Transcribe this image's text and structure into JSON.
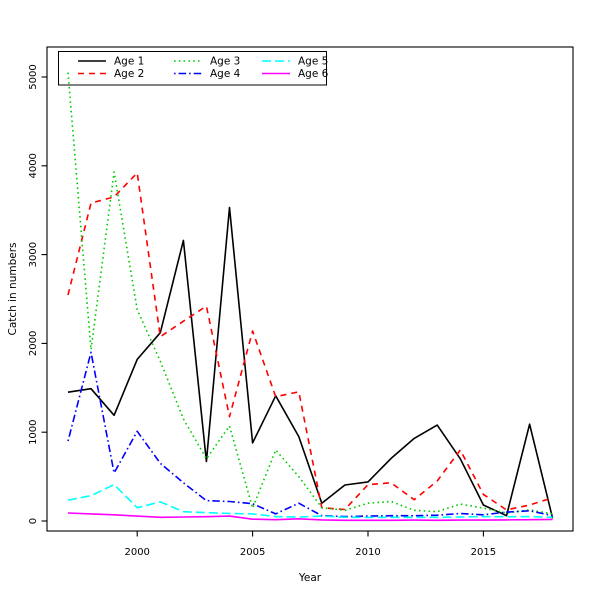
{
  "figure": {
    "background": "#ffffff",
    "axis_color": "#000000"
  },
  "chart_data": {
    "type": "line",
    "title": "",
    "xlabel": "Year",
    "ylabel": "Catch in numbers",
    "x": [
      1997,
      1998,
      1999,
      2000,
      2001,
      2002,
      2003,
      2004,
      2005,
      2006,
      2007,
      2008,
      2009,
      2010,
      2011,
      2012,
      2013,
      2014,
      2015,
      2016,
      2017,
      2018
    ],
    "series": [
      {
        "name": "Age 1",
        "color": "#000000",
        "linestyle": "solid",
        "values": [
          1450,
          1490,
          1190,
          1820,
          2120,
          3160,
          670,
          3530,
          880,
          1410,
          950,
          200,
          405,
          440,
          705,
          930,
          1080,
          700,
          180,
          60,
          1090,
          30
        ]
      },
      {
        "name": "Age 2",
        "color": "#ff0000",
        "linestyle": "dashed",
        "values": [
          2545,
          3580,
          3650,
          3920,
          2075,
          2250,
          2420,
          1175,
          2140,
          1400,
          1455,
          150,
          130,
          410,
          430,
          240,
          450,
          800,
          300,
          125,
          180,
          260
        ]
      },
      {
        "name": "Age 3",
        "color": "#00cd00",
        "linestyle": "dotted",
        "values": [
          5050,
          1930,
          3930,
          2380,
          1800,
          1150,
          700,
          1070,
          145,
          800,
          500,
          150,
          120,
          200,
          220,
          120,
          105,
          190,
          145,
          90,
          125,
          80
        ]
      },
      {
        "name": "Age 4",
        "color": "#0000ff",
        "linestyle": "dotdash",
        "values": [
          900,
          1900,
          540,
          1010,
          650,
          430,
          230,
          220,
          195,
          80,
          200,
          60,
          50,
          55,
          60,
          60,
          65,
          85,
          70,
          100,
          115,
          60
        ]
      },
      {
        "name": "Age 5",
        "color": "#00ffff",
        "linestyle": "longdash",
        "values": [
          235,
          285,
          410,
          150,
          215,
          105,
          95,
          85,
          80,
          50,
          45,
          55,
          42,
          40,
          42,
          40,
          42,
          45,
          50,
          48,
          50,
          42
        ]
      },
      {
        "name": "Age 6",
        "color": "#ff00ff",
        "linestyle": "solid",
        "values": [
          90,
          80,
          70,
          55,
          42,
          45,
          48,
          55,
          20,
          15,
          25,
          12,
          8,
          8,
          8,
          10,
          8,
          10,
          10,
          12,
          15,
          18
        ]
      }
    ],
    "x_ticks": [
      2000,
      2005,
      2010,
      2015
    ],
    "y_ticks": [
      0,
      1000,
      2000,
      3000,
      4000,
      5000
    ],
    "x_tick_labels": [
      "2000",
      "2005",
      "2010",
      "2015"
    ],
    "y_tick_labels": [
      "0",
      "1000",
      "2000",
      "3000",
      "4000",
      "5000"
    ],
    "xlim": [
      1996.1,
      2018.9
    ],
    "ylim": [
      -113,
      5338
    ],
    "grid": false,
    "legend_position": "top-left",
    "legend_entries": [
      "Age 1",
      "Age 2",
      "Age 3",
      "Age 4",
      "Age 5",
      "Age 6"
    ]
  }
}
